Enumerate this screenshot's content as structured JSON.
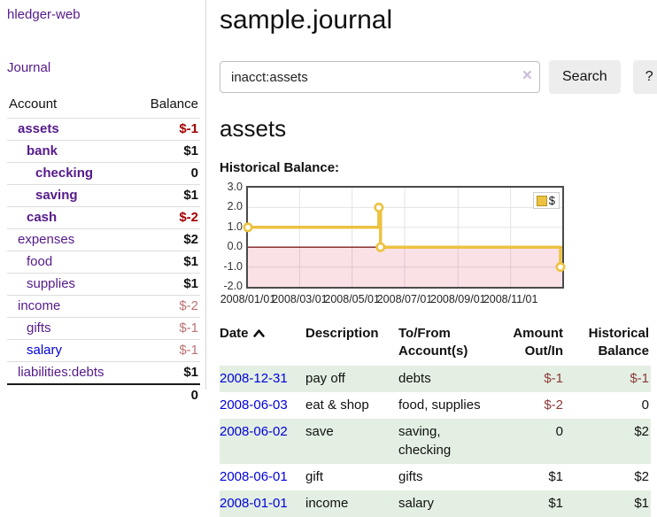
{
  "colors": {
    "link_purple": "#551a8b",
    "link_blue": "#0000dd",
    "negative_strong": "#a40000",
    "negative_soft": "#bb7272",
    "negative_table": "#8b3a3a",
    "row_stripe_green": "#e3efe2",
    "chart_line_gold": "#edc240",
    "chart_zero_line": "#7a1f1f",
    "chart_negative_fill": "rgba(220,20,60,0.13)"
  },
  "brand": {
    "label": "hledger-web"
  },
  "nav": {
    "journal_label": "Journal"
  },
  "sidebar": {
    "headers": {
      "account": "Account",
      "balance": "Balance"
    },
    "accounts": [
      {
        "name": "assets",
        "balance": "$-1",
        "depth": 1,
        "bold": true,
        "balance_class": "neg-strong",
        "link_color": "purple"
      },
      {
        "name": "bank",
        "balance": "$1",
        "depth": 2,
        "bold": true,
        "balance_class": "",
        "link_color": "purple"
      },
      {
        "name": "checking",
        "balance": "0",
        "depth": 3,
        "bold": true,
        "balance_class": "",
        "link_color": "purple"
      },
      {
        "name": "saving",
        "balance": "$1",
        "depth": 3,
        "bold": true,
        "balance_class": "",
        "link_color": "purple"
      },
      {
        "name": "cash",
        "balance": "$-2",
        "depth": 2,
        "bold": true,
        "balance_class": "neg-strong",
        "link_color": "purple"
      },
      {
        "name": "expenses",
        "balance": "$2",
        "depth": 1,
        "bold": false,
        "balance_class": "",
        "link_color": "purple"
      },
      {
        "name": "food",
        "balance": "$1",
        "depth": 2,
        "bold": false,
        "balance_class": "",
        "link_color": "purple"
      },
      {
        "name": "supplies",
        "balance": "$1",
        "depth": 2,
        "bold": false,
        "balance_class": "",
        "link_color": "purple"
      },
      {
        "name": "income",
        "balance": "$-2",
        "depth": 1,
        "bold": false,
        "balance_class": "neg-soft",
        "link_color": "purple"
      },
      {
        "name": "gifts",
        "balance": "$-1",
        "depth": 2,
        "bold": false,
        "balance_class": "neg-soft",
        "link_color": "purple"
      },
      {
        "name": "salary",
        "balance": "$-1",
        "depth": 2,
        "bold": false,
        "balance_class": "neg-soft",
        "link_color": "blue"
      },
      {
        "name": "liabilities:debts",
        "balance": "$1",
        "depth": 1,
        "bold": false,
        "balance_class": "",
        "link_color": "purple"
      }
    ],
    "total": "0"
  },
  "main": {
    "title": "sample.journal",
    "search": {
      "value": "inacct:assets",
      "clear_icon": "×",
      "search_button_label": "Search",
      "help_button_label": "?"
    },
    "account_heading": "assets",
    "section_label": "Historical Balance:"
  },
  "chart_data": {
    "type": "line",
    "title": "Historical Balance",
    "step": true,
    "legend": [
      {
        "label": "$",
        "color": "#edc240"
      }
    ],
    "legend_position": "top-right",
    "grid": true,
    "negative_region_shaded": true,
    "ylim": [
      -2,
      3
    ],
    "y_ticks": [
      "3.0",
      "2.0",
      "1.0",
      "0.0",
      "-1.0",
      "-2.0"
    ],
    "y_tick_values": [
      3,
      2,
      1,
      0,
      -1,
      -2
    ],
    "x_tick_labels": [
      "2008/01/01",
      "2008/03/01",
      "2008/05/01",
      "2008/07/01",
      "2008/09/01",
      "2008/11/01"
    ],
    "x_tick_days": [
      0,
      60,
      121,
      182,
      244,
      305
    ],
    "x_range_days": [
      0,
      365
    ],
    "points": [
      {
        "date": "2008-01-01",
        "day": 0,
        "value": 1
      },
      {
        "date": "2008-06-01",
        "day": 152,
        "value": 2
      },
      {
        "date": "2008-06-03",
        "day": 154,
        "value": 0
      },
      {
        "date": "2008-12-31",
        "day": 364,
        "value": -1
      }
    ]
  },
  "register": {
    "headers": [
      {
        "label": "Date",
        "sorted": "asc"
      },
      {
        "label": "Description"
      },
      {
        "label": "To/From Account(s)"
      },
      {
        "label": "Amount Out/In"
      },
      {
        "label": "Historical Balance"
      }
    ],
    "rows": [
      {
        "date": "2008-12-31",
        "description": "pay off",
        "accounts": "debts",
        "amount": "$-1",
        "amount_negative": true,
        "balance": "$-1",
        "balance_negative": true,
        "shaded": true
      },
      {
        "date": "2008-06-03",
        "description": "eat & shop",
        "accounts": "food, supplies",
        "amount": "$-2",
        "amount_negative": true,
        "balance": "0",
        "balance_negative": false,
        "shaded": false
      },
      {
        "date": "2008-06-02",
        "description": "save",
        "accounts": "saving, checking",
        "amount": "0",
        "amount_negative": false,
        "balance": "$2",
        "balance_negative": false,
        "shaded": true
      },
      {
        "date": "2008-06-01",
        "description": "gift",
        "accounts": "gifts",
        "amount": "$1",
        "amount_negative": false,
        "balance": "$2",
        "balance_negative": false,
        "shaded": false
      },
      {
        "date": "2008-01-01",
        "description": "income",
        "accounts": "salary",
        "amount": "$1",
        "amount_negative": false,
        "balance": "$1",
        "balance_negative": false,
        "shaded": true
      }
    ]
  }
}
